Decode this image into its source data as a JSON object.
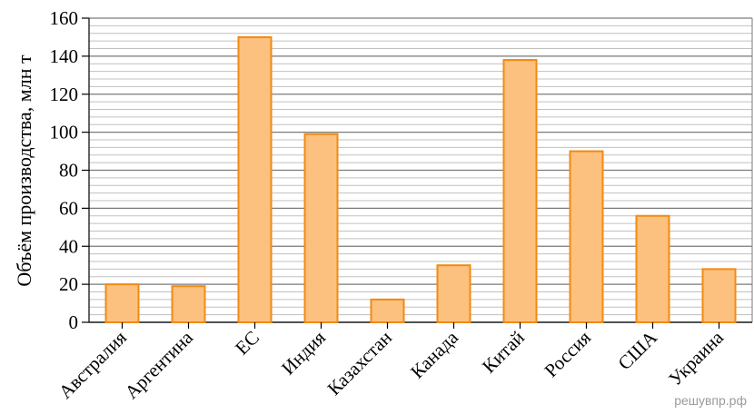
{
  "chart_data": {
    "type": "bar",
    "categories": [
      "Австралия",
      "Аргентина",
      "ЕС",
      "Индия",
      "Казахстан",
      "Канада",
      "Китай",
      "Россия",
      "США",
      "Украина"
    ],
    "values": [
      20,
      19,
      150,
      99,
      12,
      30,
      138,
      90,
      56,
      28
    ],
    "title": "",
    "xlabel": "",
    "ylabel": "Объём производства, млн т",
    "ylim": [
      0,
      160
    ],
    "yticks": [
      "0",
      "20",
      "40",
      "60",
      "80",
      "100",
      "120",
      "140",
      "160"
    ],
    "grid": true,
    "grid_minor_step": 4,
    "bar_fill": "#fcc17f",
    "bar_stroke": "#f28a12"
  },
  "watermark": "решувпр.рф"
}
